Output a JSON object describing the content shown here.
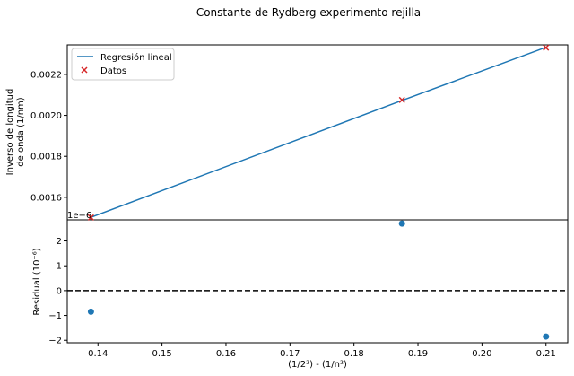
{
  "chart_data": [
    {
      "type": "line",
      "title": "Constante de Rydberg experimento rejilla",
      "ylabel_line1": "Inverso de longitud",
      "ylabel_line2": "de onda (1/nm)",
      "xlim": [
        0.1352,
        0.2134
      ],
      "ylim": [
        0.0014899,
        0.0023442
      ],
      "yticks": [
        0.0016,
        0.0018,
        0.002,
        0.0022
      ],
      "ytick_labels": [
        "0.0016",
        "0.0018",
        "0.0020",
        "0.0022"
      ],
      "grid": false,
      "legend_position": "top-left",
      "series": [
        {
          "name": "Regresión lineal",
          "style": "line",
          "color": "#1f77b4",
          "x": [
            0.1389,
            0.1875,
            0.21
          ],
          "y": [
            0.0015022,
            0.0020728,
            0.0023323
          ]
        },
        {
          "name": "Datos",
          "style": "x-marker",
          "color": "#d62728",
          "x": [
            0.1389,
            0.1875,
            0.21
          ],
          "y": [
            0.0015014,
            0.0020754,
            0.0023305
          ]
        }
      ]
    },
    {
      "type": "scatter",
      "offset_text": "1e−6",
      "xlabel": "(1/2²) - (1/n²)",
      "ylabel": "Residual (10⁻⁶)",
      "xlim": [
        0.1352,
        0.2134
      ],
      "ylim": [
        -2.1,
        2.85
      ],
      "xticks": [
        0.14,
        0.15,
        0.16,
        0.17,
        0.18,
        0.19,
        0.2,
        0.21
      ],
      "xtick_labels": [
        "0.14",
        "0.15",
        "0.16",
        "0.17",
        "0.18",
        "0.19",
        "0.20",
        "0.21"
      ],
      "yticks": [
        -2,
        -1,
        0,
        1,
        2
      ],
      "ytick_labels": [
        "−2",
        "−1",
        "0",
        "1",
        "2"
      ],
      "reference_line": {
        "y": 0,
        "style": "dashed",
        "color": "#000000"
      },
      "series": [
        {
          "color": "#1f77b4",
          "x": [
            0.1389,
            0.1875,
            0.21
          ],
          "values": [
            -0.85,
            2.7,
            -1.85
          ]
        }
      ]
    }
  ]
}
